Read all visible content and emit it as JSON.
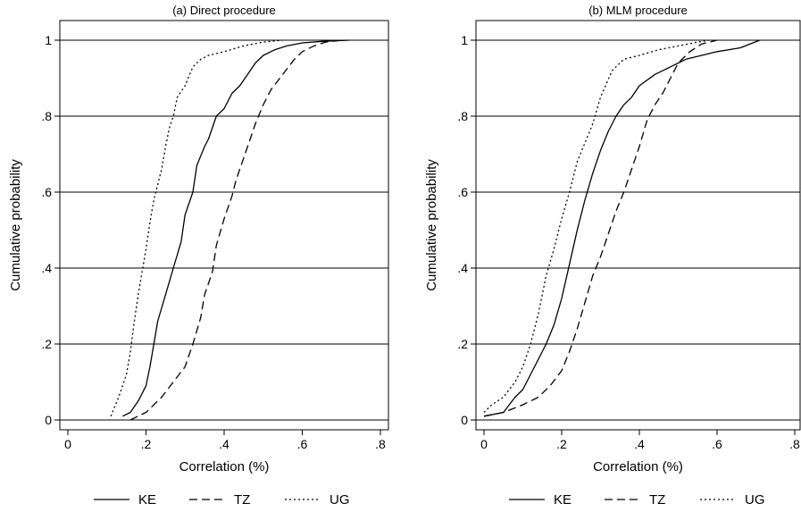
{
  "chart_data": [
    {
      "type": "line",
      "title": "(a) Direct procedure",
      "xlabel": "Correlation (%)",
      "ylabel": "Cumulative probability",
      "xlim": [
        0,
        0.8
      ],
      "ylim": [
        0,
        1
      ],
      "x_ticks": [
        {
          "v": 0,
          "label": "0"
        },
        {
          "v": 0.2,
          "label": ".2"
        },
        {
          "v": 0.4,
          "label": ".4"
        },
        {
          "v": 0.6,
          "label": ".6"
        },
        {
          "v": 0.8,
          "label": ".8"
        }
      ],
      "y_ticks": [
        {
          "v": 0,
          "label": "0"
        },
        {
          "v": 0.2,
          "label": ".2"
        },
        {
          "v": 0.4,
          "label": ".4"
        },
        {
          "v": 0.6,
          "label": ".6"
        },
        {
          "v": 0.8,
          "label": ".8"
        },
        {
          "v": 1,
          "label": "1"
        }
      ],
      "grid": "horizontal",
      "series": [
        {
          "name": "KE",
          "style": "solid",
          "x": [
            0.14,
            0.16,
            0.18,
            0.2,
            0.21,
            0.22,
            0.23,
            0.25,
            0.27,
            0.29,
            0.3,
            0.32,
            0.33,
            0.35,
            0.36,
            0.38,
            0.4,
            0.42,
            0.44,
            0.46,
            0.48,
            0.5,
            0.53,
            0.56,
            0.6,
            0.65,
            0.72
          ],
          "y": [
            0.01,
            0.02,
            0.05,
            0.09,
            0.14,
            0.2,
            0.26,
            0.33,
            0.4,
            0.47,
            0.54,
            0.6,
            0.67,
            0.72,
            0.74,
            0.8,
            0.82,
            0.86,
            0.88,
            0.91,
            0.94,
            0.96,
            0.975,
            0.985,
            0.993,
            0.997,
            1.0
          ]
        },
        {
          "name": "TZ",
          "style": "dashed",
          "x": [
            0.16,
            0.2,
            0.24,
            0.27,
            0.3,
            0.32,
            0.34,
            0.35,
            0.37,
            0.38,
            0.4,
            0.42,
            0.43,
            0.44,
            0.46,
            0.48,
            0.5,
            0.52,
            0.55,
            0.58,
            0.6,
            0.63,
            0.66,
            0.7
          ],
          "y": [
            0.0,
            0.02,
            0.06,
            0.1,
            0.14,
            0.2,
            0.27,
            0.33,
            0.39,
            0.46,
            0.53,
            0.59,
            0.63,
            0.66,
            0.72,
            0.78,
            0.83,
            0.87,
            0.91,
            0.95,
            0.97,
            0.985,
            0.995,
            1.0
          ]
        },
        {
          "name": "UG",
          "style": "dotted",
          "x": [
            0.11,
            0.13,
            0.15,
            0.16,
            0.17,
            0.18,
            0.19,
            0.2,
            0.21,
            0.22,
            0.23,
            0.24,
            0.25,
            0.26,
            0.27,
            0.28,
            0.3,
            0.32,
            0.34,
            0.36,
            0.4,
            0.45,
            0.5,
            0.55
          ],
          "y": [
            0.01,
            0.06,
            0.12,
            0.18,
            0.26,
            0.33,
            0.39,
            0.45,
            0.52,
            0.58,
            0.62,
            0.66,
            0.72,
            0.77,
            0.8,
            0.85,
            0.88,
            0.93,
            0.95,
            0.96,
            0.97,
            0.985,
            0.995,
            1.0
          ]
        }
      ]
    },
    {
      "type": "line",
      "title": "(b) MLM procedure",
      "xlabel": "Correlation (%)",
      "ylabel": "Cumulative probability",
      "xlim": [
        0,
        0.8
      ],
      "ylim": [
        0,
        1
      ],
      "x_ticks": [
        {
          "v": 0,
          "label": "0"
        },
        {
          "v": 0.2,
          "label": ".2"
        },
        {
          "v": 0.4,
          "label": ".4"
        },
        {
          "v": 0.6,
          "label": ".6"
        },
        {
          "v": 0.8,
          "label": ".8"
        }
      ],
      "y_ticks": [
        {
          "v": 0,
          "label": "0"
        },
        {
          "v": 0.2,
          "label": ".2"
        },
        {
          "v": 0.4,
          "label": ".4"
        },
        {
          "v": 0.6,
          "label": ".6"
        },
        {
          "v": 0.8,
          "label": ".8"
        },
        {
          "v": 1,
          "label": "1"
        }
      ],
      "grid": "horizontal",
      "series": [
        {
          "name": "KE",
          "style": "solid",
          "x": [
            0.0,
            0.05,
            0.08,
            0.1,
            0.12,
            0.14,
            0.16,
            0.18,
            0.2,
            0.22,
            0.24,
            0.26,
            0.28,
            0.3,
            0.32,
            0.34,
            0.36,
            0.38,
            0.4,
            0.44,
            0.48,
            0.52,
            0.56,
            0.6,
            0.66,
            0.71
          ],
          "y": [
            0.01,
            0.02,
            0.06,
            0.08,
            0.12,
            0.16,
            0.2,
            0.25,
            0.32,
            0.41,
            0.5,
            0.58,
            0.65,
            0.71,
            0.76,
            0.8,
            0.83,
            0.85,
            0.88,
            0.91,
            0.93,
            0.95,
            0.96,
            0.97,
            0.98,
            1.0
          ]
        },
        {
          "name": "TZ",
          "style": "dashed",
          "x": [
            0.0,
            0.05,
            0.1,
            0.14,
            0.17,
            0.2,
            0.22,
            0.24,
            0.26,
            0.28,
            0.3,
            0.32,
            0.34,
            0.36,
            0.38,
            0.4,
            0.42,
            0.44,
            0.46,
            0.48,
            0.5,
            0.53,
            0.56,
            0.6
          ],
          "y": [
            0.01,
            0.02,
            0.04,
            0.06,
            0.09,
            0.13,
            0.18,
            0.24,
            0.31,
            0.38,
            0.43,
            0.49,
            0.55,
            0.6,
            0.66,
            0.72,
            0.79,
            0.83,
            0.86,
            0.9,
            0.94,
            0.97,
            0.99,
            1.0
          ]
        },
        {
          "name": "UG",
          "style": "dotted",
          "x": [
            0.0,
            0.02,
            0.05,
            0.08,
            0.1,
            0.12,
            0.14,
            0.16,
            0.18,
            0.2,
            0.22,
            0.24,
            0.26,
            0.28,
            0.3,
            0.33,
            0.36,
            0.4,
            0.45,
            0.5,
            0.55,
            0.58
          ],
          "y": [
            0.02,
            0.04,
            0.06,
            0.1,
            0.14,
            0.2,
            0.28,
            0.38,
            0.45,
            0.53,
            0.6,
            0.68,
            0.73,
            0.78,
            0.85,
            0.92,
            0.95,
            0.96,
            0.975,
            0.985,
            0.995,
            1.0
          ]
        }
      ]
    }
  ]
}
